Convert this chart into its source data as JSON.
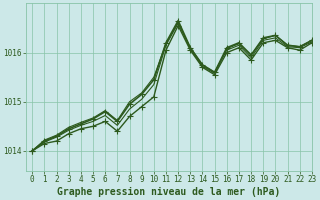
{
  "title": "Graphe pression niveau de la mer (hPa)",
  "bg_color": "#cce8e8",
  "grid_color": "#88c4a8",
  "line_color": "#2d5a1e",
  "xlim": [
    -0.5,
    23
  ],
  "ylim": [
    1013.6,
    1017.0
  ],
  "yticks": [
    1014,
    1015,
    1016
  ],
  "xticks": [
    0,
    1,
    2,
    3,
    4,
    5,
    6,
    7,
    8,
    9,
    10,
    11,
    12,
    13,
    14,
    15,
    16,
    17,
    18,
    19,
    20,
    21,
    22,
    23
  ],
  "series": [
    {
      "y": [
        1014.0,
        1014.15,
        1014.2,
        1014.35,
        1014.45,
        1014.5,
        1014.6,
        1014.4,
        1014.7,
        1014.9,
        1015.1,
        1016.05,
        1016.55,
        1016.05,
        1015.7,
        1015.55,
        1016.0,
        1016.1,
        1015.85,
        1016.2,
        1016.25,
        1016.1,
        1016.05,
        1016.2
      ],
      "lw": 1.0,
      "marker": "+",
      "ms": 4,
      "ls": "-",
      "zorder": 3
    },
    {
      "y": [
        1014.0,
        1014.18,
        1014.28,
        1014.42,
        1014.52,
        1014.6,
        1014.72,
        1014.52,
        1014.85,
        1015.05,
        1015.35,
        1016.15,
        1016.6,
        1016.1,
        1015.75,
        1015.6,
        1016.05,
        1016.15,
        1015.9,
        1016.25,
        1016.3,
        1016.12,
        1016.1,
        1016.22
      ],
      "lw": 0.8,
      "marker": null,
      "ms": 0,
      "ls": "-",
      "zorder": 2
    },
    {
      "y": [
        1014.0,
        1014.22,
        1014.32,
        1014.48,
        1014.58,
        1014.67,
        1014.82,
        1014.62,
        1015.0,
        1015.18,
        1015.5,
        1016.18,
        1016.62,
        1016.08,
        1015.72,
        1015.58,
        1016.08,
        1016.18,
        1015.95,
        1016.28,
        1016.35,
        1016.15,
        1016.12,
        1016.25
      ],
      "lw": 0.8,
      "marker": null,
      "ms": 0,
      "ls": "-",
      "zorder": 2
    },
    {
      "y": [
        1014.0,
        1014.2,
        1014.3,
        1014.45,
        1014.55,
        1014.65,
        1014.8,
        1014.6,
        1014.95,
        1015.15,
        1015.45,
        1016.2,
        1016.65,
        1016.1,
        1015.75,
        1015.6,
        1016.1,
        1016.2,
        1015.95,
        1016.3,
        1016.35,
        1016.15,
        1016.12,
        1016.25
      ],
      "lw": 1.2,
      "marker": "+",
      "ms": 5,
      "ls": "-",
      "zorder": 3
    }
  ],
  "tick_fontsize": 5.5,
  "xlabel_fontsize": 7.0
}
